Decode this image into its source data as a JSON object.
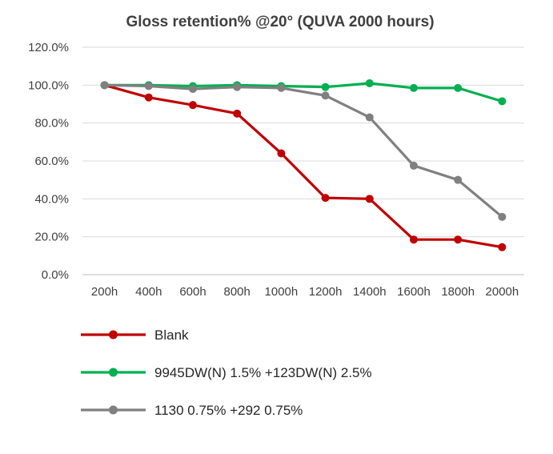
{
  "chart_data": {
    "type": "line",
    "title": "Gloss retention% @20° (QUVA 2000 hours)",
    "xlabel": "",
    "ylabel": "",
    "categories": [
      "200h",
      "400h",
      "600h",
      "800h",
      "1000h",
      "1200h",
      "1400h",
      "1600h",
      "1800h",
      "2000h"
    ],
    "ylim": [
      0,
      120
    ],
    "y_ticks": [
      "0.0%",
      "20.0%",
      "40.0%",
      "60.0%",
      "80.0%",
      "100.0%",
      "120.0%"
    ],
    "grid": true,
    "legend_position": "bottom",
    "series": [
      {
        "name": "Blank",
        "color": "#C00000",
        "values": [
          100,
          93.5,
          89.5,
          85,
          64,
          40.5,
          40,
          18.5,
          18.5,
          14.5
        ]
      },
      {
        "name": "9945DW(N) 1.5% +123DW(N) 2.5%",
        "color": "#00B050",
        "values": [
          100,
          100,
          99.5,
          100,
          99.5,
          99,
          101,
          98.5,
          98.5,
          91.5
        ]
      },
      {
        "name": "1130 0.75% +292 0.75%",
        "color": "#808080",
        "values": [
          100,
          99.5,
          98,
          99,
          98.5,
          94.5,
          83,
          57.5,
          50,
          30.5
        ]
      }
    ]
  }
}
